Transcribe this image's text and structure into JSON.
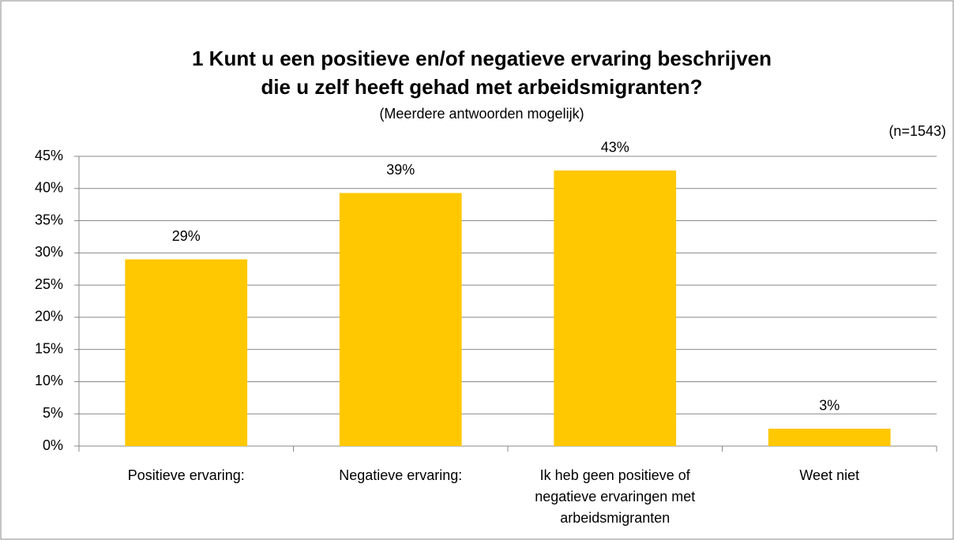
{
  "chart_data": {
    "type": "bar",
    "title": [
      "1 Kunt u een positieve en/of negatieve ervaring beschrijven",
      "die u zelf heeft gehad met arbeidsmigranten?"
    ],
    "subtitle": "(Meerdere antwoorden mogelijk)",
    "note": "(n=1543)",
    "categories": [
      "Positieve ervaring:",
      "Negatieve ervaring:",
      "Ik heb geen positieve of negatieve ervaringen met arbeidsmigranten",
      "Weet niet"
    ],
    "values": [
      29,
      39.3,
      42.8,
      2.7
    ],
    "value_labels": [
      "29%",
      "39%",
      "43%",
      "3%"
    ],
    "color": "#ffc800",
    "ylim": [
      0,
      45
    ],
    "yticks": [
      {
        "value": 0,
        "label": "0%"
      },
      {
        "value": 5,
        "label": "5%"
      },
      {
        "value": 10,
        "label": "10%"
      },
      {
        "value": 15,
        "label": "15%"
      },
      {
        "value": 20,
        "label": "20%"
      },
      {
        "value": 25,
        "label": "25%"
      },
      {
        "value": 30,
        "label": "30%"
      },
      {
        "value": 35,
        "label": "35%"
      },
      {
        "value": 40,
        "label": "40%"
      },
      {
        "value": 45,
        "label": "45%"
      }
    ],
    "grid": true
  }
}
